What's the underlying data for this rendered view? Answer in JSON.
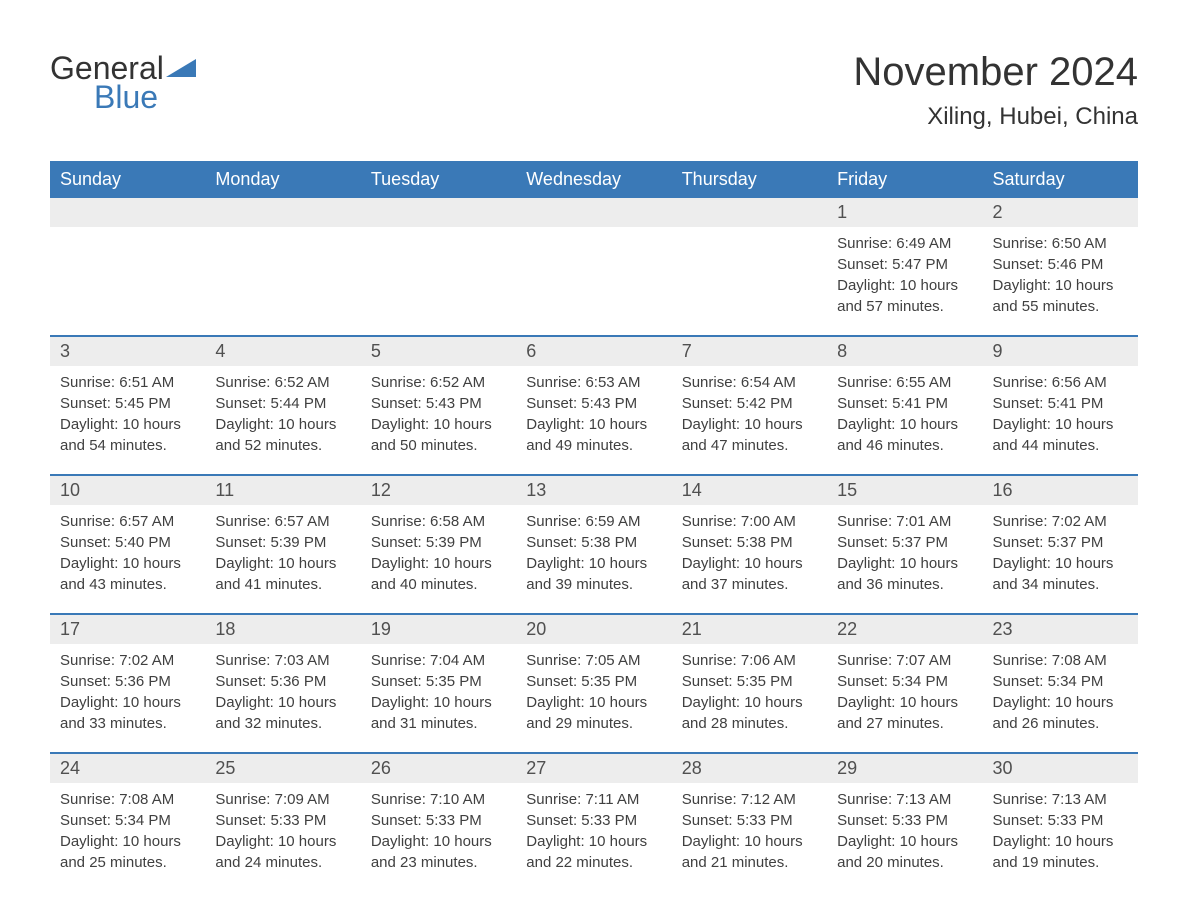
{
  "header": {
    "logo_general": "General",
    "logo_blue": "Blue",
    "month_title": "November 2024",
    "location": "Xiling, Hubei, China"
  },
  "colors": {
    "header_bg": "#3a79b7",
    "header_text": "#ffffff",
    "day_bar_bg": "#ededed",
    "day_bar_border": "#3a79b7",
    "body_text": "#404040",
    "title_text": "#333333",
    "logo_blue": "#3a79b7",
    "background": "#ffffff"
  },
  "typography": {
    "title_fontsize": 40,
    "location_fontsize": 24,
    "dayheader_fontsize": 18,
    "daynumber_fontsize": 18,
    "content_fontsize": 15
  },
  "day_headers": [
    "Sunday",
    "Monday",
    "Tuesday",
    "Wednesday",
    "Thursday",
    "Friday",
    "Saturday"
  ],
  "weeks": [
    [
      {
        "day": "",
        "sunrise": "",
        "sunset": "",
        "daylight1": "",
        "daylight2": ""
      },
      {
        "day": "",
        "sunrise": "",
        "sunset": "",
        "daylight1": "",
        "daylight2": ""
      },
      {
        "day": "",
        "sunrise": "",
        "sunset": "",
        "daylight1": "",
        "daylight2": ""
      },
      {
        "day": "",
        "sunrise": "",
        "sunset": "",
        "daylight1": "",
        "daylight2": ""
      },
      {
        "day": "",
        "sunrise": "",
        "sunset": "",
        "daylight1": "",
        "daylight2": ""
      },
      {
        "day": "1",
        "sunrise": "Sunrise: 6:49 AM",
        "sunset": "Sunset: 5:47 PM",
        "daylight1": "Daylight: 10 hours",
        "daylight2": "and 57 minutes."
      },
      {
        "day": "2",
        "sunrise": "Sunrise: 6:50 AM",
        "sunset": "Sunset: 5:46 PM",
        "daylight1": "Daylight: 10 hours",
        "daylight2": "and 55 minutes."
      }
    ],
    [
      {
        "day": "3",
        "sunrise": "Sunrise: 6:51 AM",
        "sunset": "Sunset: 5:45 PM",
        "daylight1": "Daylight: 10 hours",
        "daylight2": "and 54 minutes."
      },
      {
        "day": "4",
        "sunrise": "Sunrise: 6:52 AM",
        "sunset": "Sunset: 5:44 PM",
        "daylight1": "Daylight: 10 hours",
        "daylight2": "and 52 minutes."
      },
      {
        "day": "5",
        "sunrise": "Sunrise: 6:52 AM",
        "sunset": "Sunset: 5:43 PM",
        "daylight1": "Daylight: 10 hours",
        "daylight2": "and 50 minutes."
      },
      {
        "day": "6",
        "sunrise": "Sunrise: 6:53 AM",
        "sunset": "Sunset: 5:43 PM",
        "daylight1": "Daylight: 10 hours",
        "daylight2": "and 49 minutes."
      },
      {
        "day": "7",
        "sunrise": "Sunrise: 6:54 AM",
        "sunset": "Sunset: 5:42 PM",
        "daylight1": "Daylight: 10 hours",
        "daylight2": "and 47 minutes."
      },
      {
        "day": "8",
        "sunrise": "Sunrise: 6:55 AM",
        "sunset": "Sunset: 5:41 PM",
        "daylight1": "Daylight: 10 hours",
        "daylight2": "and 46 minutes."
      },
      {
        "day": "9",
        "sunrise": "Sunrise: 6:56 AM",
        "sunset": "Sunset: 5:41 PM",
        "daylight1": "Daylight: 10 hours",
        "daylight2": "and 44 minutes."
      }
    ],
    [
      {
        "day": "10",
        "sunrise": "Sunrise: 6:57 AM",
        "sunset": "Sunset: 5:40 PM",
        "daylight1": "Daylight: 10 hours",
        "daylight2": "and 43 minutes."
      },
      {
        "day": "11",
        "sunrise": "Sunrise: 6:57 AM",
        "sunset": "Sunset: 5:39 PM",
        "daylight1": "Daylight: 10 hours",
        "daylight2": "and 41 minutes."
      },
      {
        "day": "12",
        "sunrise": "Sunrise: 6:58 AM",
        "sunset": "Sunset: 5:39 PM",
        "daylight1": "Daylight: 10 hours",
        "daylight2": "and 40 minutes."
      },
      {
        "day": "13",
        "sunrise": "Sunrise: 6:59 AM",
        "sunset": "Sunset: 5:38 PM",
        "daylight1": "Daylight: 10 hours",
        "daylight2": "and 39 minutes."
      },
      {
        "day": "14",
        "sunrise": "Sunrise: 7:00 AM",
        "sunset": "Sunset: 5:38 PM",
        "daylight1": "Daylight: 10 hours",
        "daylight2": "and 37 minutes."
      },
      {
        "day": "15",
        "sunrise": "Sunrise: 7:01 AM",
        "sunset": "Sunset: 5:37 PM",
        "daylight1": "Daylight: 10 hours",
        "daylight2": "and 36 minutes."
      },
      {
        "day": "16",
        "sunrise": "Sunrise: 7:02 AM",
        "sunset": "Sunset: 5:37 PM",
        "daylight1": "Daylight: 10 hours",
        "daylight2": "and 34 minutes."
      }
    ],
    [
      {
        "day": "17",
        "sunrise": "Sunrise: 7:02 AM",
        "sunset": "Sunset: 5:36 PM",
        "daylight1": "Daylight: 10 hours",
        "daylight2": "and 33 minutes."
      },
      {
        "day": "18",
        "sunrise": "Sunrise: 7:03 AM",
        "sunset": "Sunset: 5:36 PM",
        "daylight1": "Daylight: 10 hours",
        "daylight2": "and 32 minutes."
      },
      {
        "day": "19",
        "sunrise": "Sunrise: 7:04 AM",
        "sunset": "Sunset: 5:35 PM",
        "daylight1": "Daylight: 10 hours",
        "daylight2": "and 31 minutes."
      },
      {
        "day": "20",
        "sunrise": "Sunrise: 7:05 AM",
        "sunset": "Sunset: 5:35 PM",
        "daylight1": "Daylight: 10 hours",
        "daylight2": "and 29 minutes."
      },
      {
        "day": "21",
        "sunrise": "Sunrise: 7:06 AM",
        "sunset": "Sunset: 5:35 PM",
        "daylight1": "Daylight: 10 hours",
        "daylight2": "and 28 minutes."
      },
      {
        "day": "22",
        "sunrise": "Sunrise: 7:07 AM",
        "sunset": "Sunset: 5:34 PM",
        "daylight1": "Daylight: 10 hours",
        "daylight2": "and 27 minutes."
      },
      {
        "day": "23",
        "sunrise": "Sunrise: 7:08 AM",
        "sunset": "Sunset: 5:34 PM",
        "daylight1": "Daylight: 10 hours",
        "daylight2": "and 26 minutes."
      }
    ],
    [
      {
        "day": "24",
        "sunrise": "Sunrise: 7:08 AM",
        "sunset": "Sunset: 5:34 PM",
        "daylight1": "Daylight: 10 hours",
        "daylight2": "and 25 minutes."
      },
      {
        "day": "25",
        "sunrise": "Sunrise: 7:09 AM",
        "sunset": "Sunset: 5:33 PM",
        "daylight1": "Daylight: 10 hours",
        "daylight2": "and 24 minutes."
      },
      {
        "day": "26",
        "sunrise": "Sunrise: 7:10 AM",
        "sunset": "Sunset: 5:33 PM",
        "daylight1": "Daylight: 10 hours",
        "daylight2": "and 23 minutes."
      },
      {
        "day": "27",
        "sunrise": "Sunrise: 7:11 AM",
        "sunset": "Sunset: 5:33 PM",
        "daylight1": "Daylight: 10 hours",
        "daylight2": "and 22 minutes."
      },
      {
        "day": "28",
        "sunrise": "Sunrise: 7:12 AM",
        "sunset": "Sunset: 5:33 PM",
        "daylight1": "Daylight: 10 hours",
        "daylight2": "and 21 minutes."
      },
      {
        "day": "29",
        "sunrise": "Sunrise: 7:13 AM",
        "sunset": "Sunset: 5:33 PM",
        "daylight1": "Daylight: 10 hours",
        "daylight2": "and 20 minutes."
      },
      {
        "day": "30",
        "sunrise": "Sunrise: 7:13 AM",
        "sunset": "Sunset: 5:33 PM",
        "daylight1": "Daylight: 10 hours",
        "daylight2": "and 19 minutes."
      }
    ]
  ]
}
